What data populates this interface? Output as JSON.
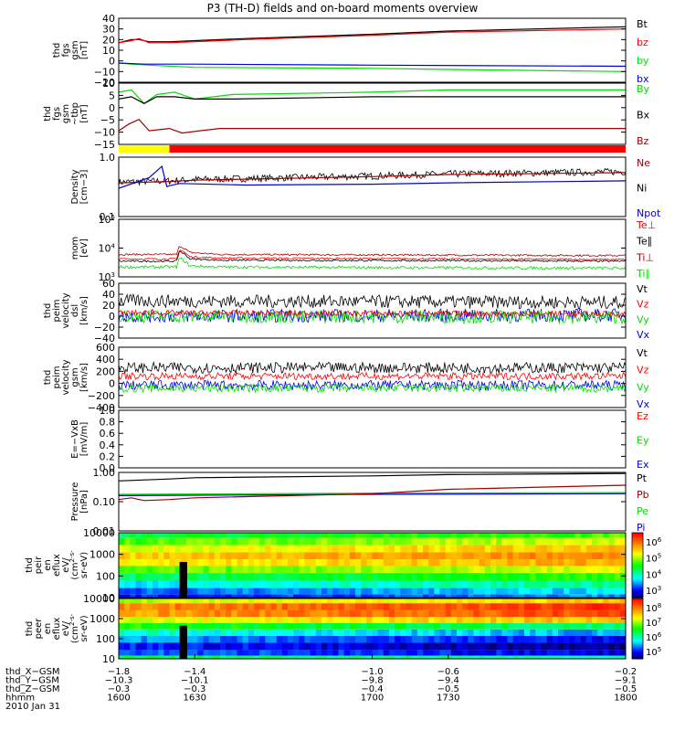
{
  "title": "P3 (TH-D) fields and on-board moments overview",
  "colors": {
    "black": "#000000",
    "red": "#ff0000",
    "darkred": "#a00000",
    "green": "#00dd00",
    "blue": "#0000dd",
    "yellow": "#ffff00",
    "barred": "#ff0000"
  },
  "status_bar": {
    "segments": [
      {
        "to": 1620,
        "color": "#ffff00"
      },
      {
        "to": 1800,
        "color": "#ff0000"
      }
    ]
  },
  "chart_data": [
    {
      "id": "fgs",
      "type": "line",
      "ylabel_lines": [
        "thd",
        "fgs",
        "gsm",
        "[nT]"
      ],
      "ylim": [
        -20,
        40
      ],
      "yticks": [
        "40",
        "30",
        "20",
        "10",
        "0",
        "−10",
        "−20"
      ],
      "legend": [
        {
          "name": "Bt",
          "color": "#000000"
        },
        {
          "name": "bz",
          "color": "#ff0000"
        },
        {
          "name": "by",
          "color": "#00dd00"
        },
        {
          "name": "bx",
          "color": "#0000dd"
        }
      ],
      "series": [
        {
          "name": "Bt",
          "color": "#000000",
          "x": [
            1600,
            1605,
            1608,
            1612,
            1620,
            1630,
            1650,
            1700,
            1730,
            1800
          ],
          "y": [
            17,
            20,
            20,
            18,
            18,
            19,
            21,
            25,
            28,
            32
          ]
        },
        {
          "name": "bz",
          "color": "#ff0000",
          "x": [
            1600,
            1605,
            1608,
            1612,
            1620,
            1630,
            1650,
            1700,
            1730,
            1800
          ],
          "y": [
            17,
            19,
            21,
            17,
            17,
            18,
            20,
            24,
            27,
            30
          ]
        },
        {
          "name": "by",
          "color": "#00dd00",
          "x": [
            1600,
            1605,
            1612,
            1630,
            1700,
            1730,
            1800
          ],
          "y": [
            -2,
            -3,
            -4,
            -6,
            -7,
            -8,
            -10
          ]
        },
        {
          "name": "bx",
          "color": "#0000dd",
          "x": [
            1600,
            1610,
            1630,
            1700,
            1800
          ],
          "y": [
            -2,
            -3,
            -3,
            -4,
            -5
          ]
        }
      ]
    },
    {
      "id": "fgs_tbp",
      "type": "line",
      "ylabel_lines": [
        "thd",
        "fgs",
        "gsm",
        "~tbp",
        "[nT]"
      ],
      "ylim": [
        -17,
        10
      ],
      "yticks": [
        "10",
        "5",
        "0",
        "−5",
        "−10",
        "−15"
      ],
      "legend": [
        {
          "name": "By",
          "color": "#00dd00"
        },
        {
          "name": "Bx",
          "color": "#000000"
        },
        {
          "name": "Bz",
          "color": "#a00000"
        }
      ],
      "series": [
        {
          "name": "By",
          "color": "#00dd00",
          "x": [
            1600,
            1605,
            1610,
            1615,
            1622,
            1630,
            1645,
            1700,
            1730,
            1800
          ],
          "y": [
            6,
            7,
            1,
            5,
            6,
            3,
            5,
            6,
            7,
            7
          ]
        },
        {
          "name": "Bx",
          "color": "#000000",
          "x": [
            1600,
            1605,
            1610,
            1615,
            1622,
            1630,
            1645,
            1700,
            1730,
            1800
          ],
          "y": [
            3,
            4,
            1,
            4,
            4,
            3,
            3,
            4,
            4,
            4
          ]
        },
        {
          "name": "Bz",
          "color": "#a00000",
          "x": [
            1600,
            1604,
            1608,
            1612,
            1620,
            1625,
            1632,
            1640,
            1700,
            1730,
            1800
          ],
          "y": [
            -11,
            -8,
            -6,
            -11,
            -10,
            -12,
            -11,
            -10,
            -10,
            -10,
            -10
          ]
        }
      ]
    },
    {
      "id": "density",
      "type": "line",
      "log": true,
      "ylabel_lines": [
        "Density",
        "[cm−3]"
      ],
      "ylim": [
        0.1,
        1.0
      ],
      "yticks": [
        "1.0",
        "0.1"
      ],
      "legend": [
        {
          "name": "Ne",
          "color": "#a00000"
        },
        {
          "name": "Ni",
          "color": "#000000"
        },
        {
          "name": "Npot",
          "color": "#0000dd"
        }
      ],
      "series": [
        {
          "name": "Ni",
          "color": "#000000",
          "noise": 0.06,
          "x": [
            1600,
            1620,
            1630,
            1700,
            1730,
            1800
          ],
          "y": [
            0.38,
            0.4,
            0.42,
            0.48,
            0.52,
            0.57
          ]
        },
        {
          "name": "Ne",
          "color": "#a00000",
          "x": [
            1600,
            1620,
            1630,
            1700,
            1730,
            1800
          ],
          "y": [
            0.37,
            0.39,
            0.41,
            0.47,
            0.51,
            0.55
          ]
        },
        {
          "name": "Npot",
          "color": "#0000dd",
          "x": [
            1600,
            1612,
            1617,
            1619,
            1620,
            1624,
            1650,
            1700,
            1730,
            1800
          ],
          "y": [
            0.3,
            0.45,
            0.7,
            0.32,
            0.33,
            0.36,
            0.34,
            0.35,
            0.37,
            0.4
          ]
        }
      ]
    },
    {
      "id": "temp",
      "type": "line",
      "log": true,
      "ylabel_lines": [
        "mom",
        "[eV]"
      ],
      "ylim": [
        1000,
        100000
      ],
      "yticks": [
        "10^5",
        "10^4",
        "10^3"
      ],
      "legend": [
        {
          "name": "Te⊥",
          "color": "#ff0000"
        },
        {
          "name": "Te∥",
          "color": "#000000"
        },
        {
          "name": "Ti⊥",
          "color": "#a00000"
        },
        {
          "name": "Ti∥",
          "color": "#00dd00"
        }
      ],
      "series": [
        {
          "name": "Ti⊥",
          "color": "#a00000",
          "noise": 0.03,
          "x": [
            1600,
            1623,
            1624,
            1628,
            1640,
            1700,
            1800
          ],
          "y": [
            6000,
            6000,
            12000,
            7000,
            6000,
            5800,
            5500
          ]
        },
        {
          "name": "Te⊥",
          "color": "#ff0000",
          "noise": 0.03,
          "x": [
            1600,
            1623,
            1624,
            1628,
            1640,
            1700,
            1800
          ],
          "y": [
            4200,
            4200,
            9000,
            5000,
            4500,
            4300,
            4000
          ]
        },
        {
          "name": "Te∥",
          "color": "#000000",
          "noise": 0.03,
          "x": [
            1600,
            1623,
            1624,
            1628,
            1640,
            1700,
            1800
          ],
          "y": [
            3500,
            3500,
            8000,
            4200,
            3800,
            3700,
            3500
          ]
        },
        {
          "name": "Ti∥",
          "color": "#00dd00",
          "noise": 0.05,
          "x": [
            1600,
            1623,
            1624,
            1628,
            1640,
            1700,
            1800
          ],
          "y": [
            2200,
            2200,
            4500,
            2400,
            2200,
            2100,
            2000
          ]
        }
      ]
    },
    {
      "id": "vel_dsl",
      "type": "line",
      "ylabel_lines": [
        "thd",
        "peim",
        "velocity",
        "dsl",
        "[km/s]"
      ],
      "ylim": [
        -40,
        60
      ],
      "yticks": [
        "60",
        "40",
        "20",
        "0",
        "−20",
        "−40"
      ],
      "legend": [
        {
          "name": "Vt",
          "color": "#000000"
        },
        {
          "name": "Vz",
          "color": "#ff0000"
        },
        {
          "name": "Vy",
          "color": "#00dd00"
        },
        {
          "name": "Vx",
          "color": "#0000dd"
        }
      ],
      "series": [
        {
          "name": "Vt",
          "color": "#000000",
          "noise": 12,
          "x": [
            1600,
            1800
          ],
          "y": [
            28,
            25
          ]
        },
        {
          "name": "Vx",
          "color": "#0000dd",
          "noise": 12,
          "x": [
            1600,
            1800
          ],
          "y": [
            0,
            2
          ]
        },
        {
          "name": "Vy",
          "color": "#00dd00",
          "noise": 12,
          "x": [
            1600,
            1800
          ],
          "y": [
            0,
            -2
          ]
        },
        {
          "name": "Vz",
          "color": "#ff0000",
          "noise": 5,
          "x": [
            1600,
            1800
          ],
          "y": [
            6,
            4
          ]
        }
      ]
    },
    {
      "id": "vel_gsm",
      "type": "line",
      "ylabel_lines": [
        "thd",
        "peim",
        "velocity",
        "gsm",
        "[km/s]"
      ],
      "ylim": [
        -400,
        600
      ],
      "yticks": [
        "600",
        "400",
        "200",
        "0",
        "−200",
        "−400"
      ],
      "legend": [
        {
          "name": "Vt",
          "color": "#000000"
        },
        {
          "name": "Vz",
          "color": "#ff0000"
        },
        {
          "name": "Vy",
          "color": "#00dd00"
        },
        {
          "name": "Vx",
          "color": "#0000dd"
        }
      ],
      "series": [
        {
          "name": "Vt",
          "color": "#000000",
          "noise": 90,
          "x": [
            1600,
            1800
          ],
          "y": [
            260,
            260
          ]
        },
        {
          "name": "Vx",
          "color": "#0000dd",
          "noise": 80,
          "x": [
            1600,
            1800
          ],
          "y": [
            -30,
            -30
          ]
        },
        {
          "name": "Vz",
          "color": "#ff0000",
          "noise": 60,
          "x": [
            1600,
            1800
          ],
          "y": [
            120,
            120
          ]
        },
        {
          "name": "Vy",
          "color": "#00dd00",
          "noise": 70,
          "x": [
            1600,
            1800
          ],
          "y": [
            -80,
            -80
          ]
        }
      ]
    },
    {
      "id": "efield",
      "type": "line",
      "ylabel_lines": [
        "E=−VxB",
        "[mV/m]"
      ],
      "ylim": [
        0,
        1.0
      ],
      "yticks": [
        "1.0",
        "0.8",
        "0.6",
        "0.4",
        "0.2",
        "0.0"
      ],
      "legend": [
        {
          "name": "Ez",
          "color": "#ff0000"
        },
        {
          "name": "Ey",
          "color": "#00dd00"
        },
        {
          "name": "Ex",
          "color": "#0000dd"
        }
      ],
      "series": []
    },
    {
      "id": "pressure",
      "type": "line",
      "log": true,
      "ylabel_lines": [
        "Pressure",
        "[nPa]"
      ],
      "ylim": [
        0.01,
        1.2
      ],
      "yticks": [
        "1.00",
        "0.10",
        "0.01"
      ],
      "legend": [
        {
          "name": "Pt",
          "color": "#000000"
        },
        {
          "name": "Pb",
          "color": "#a00000"
        },
        {
          "name": "Pe",
          "color": "#00dd00"
        },
        {
          "name": "Pi",
          "color": "#0000dd"
        }
      ],
      "series": [
        {
          "name": "Pt",
          "color": "#000000",
          "x": [
            1600,
            1620,
            1630,
            1700,
            1730,
            1800
          ],
          "y": [
            0.6,
            0.7,
            0.78,
            0.9,
            1.0,
            1.1
          ]
        },
        {
          "name": "Pe",
          "color": "#00dd00",
          "x": [
            1600,
            1700,
            1800
          ],
          "y": [
            0.2,
            0.22,
            0.23
          ]
        },
        {
          "name": "Pi",
          "color": "#0000dd",
          "x": [
            1600,
            1700,
            1800
          ],
          "y": [
            0.18,
            0.2,
            0.21
          ]
        },
        {
          "name": "Pb",
          "color": "#a00000",
          "x": [
            1600,
            1605,
            1610,
            1620,
            1630,
            1700,
            1730,
            1800
          ],
          "y": [
            0.13,
            0.15,
            0.12,
            0.13,
            0.15,
            0.21,
            0.3,
            0.42
          ]
        }
      ]
    },
    {
      "id": "peir",
      "type": "heatmap",
      "ylabel_lines": [
        "thd",
        "peir",
        "en",
        "eflux",
        "eV/",
        "(cm^2-s-",
        "sr-eV)"
      ],
      "ylim": [
        5,
        25000
      ],
      "yticks": [
        "10000",
        "1000",
        "100",
        "10"
      ],
      "colorbar": [
        "10^6",
        "10^5",
        "10^4",
        "10^3"
      ],
      "colorbar_log_range": [
        2.5,
        6.3
      ],
      "gap_x": [
        1624,
        1627
      ],
      "rows_log_flux": [
        {
          "energy": 20000,
          "level": 4.2
        },
        {
          "energy": 8000,
          "level": 4.6
        },
        {
          "energy": 3000,
          "level": 5.0
        },
        {
          "energy": 1200,
          "level": 5.3
        },
        {
          "energy": 500,
          "level": 5.1
        },
        {
          "energy": 200,
          "level": 4.6
        },
        {
          "energy": 80,
          "level": 4.1
        },
        {
          "energy": 30,
          "level": 3.6
        },
        {
          "energy": 10,
          "level": 3.2
        },
        {
          "energy": 6,
          "level": 3.0
        }
      ]
    },
    {
      "id": "peer",
      "type": "heatmap",
      "ylabel_lines": [
        "thd",
        "peer",
        "en",
        "eflux",
        "eV/",
        "(cm^2-s-",
        "sr-eV)"
      ],
      "ylim": [
        5,
        25000
      ],
      "yticks": [
        "10000",
        "1000",
        "100",
        "10"
      ],
      "colorbar": [
        "10^8",
        "10^7",
        "10^6",
        "10^5"
      ],
      "colorbar_log_range": [
        4.8,
        8.3
      ],
      "gap_x": [
        1624,
        1627
      ],
      "rows_log_flux": [
        {
          "energy": 20000,
          "level": 7.0
        },
        {
          "energy": 8000,
          "level": 7.7
        },
        {
          "energy": 3000,
          "level": 7.6
        },
        {
          "energy": 1200,
          "level": 7.1
        },
        {
          "energy": 500,
          "level": 6.6
        },
        {
          "energy": 200,
          "level": 6.0
        },
        {
          "energy": 80,
          "level": 5.6
        },
        {
          "energy": 30,
          "level": 5.3
        },
        {
          "energy": 10,
          "level": 5.5
        },
        {
          "energy": 6,
          "level": 6.4
        }
      ]
    }
  ],
  "xaxis": {
    "xlim": [
      1600,
      1800
    ],
    "ticks": [
      1600,
      1630,
      1700,
      1730,
      1800
    ],
    "rows": [
      {
        "label": "thd_X−GSM",
        "values": [
          "−1.8",
          "−1.4",
          "−1.0",
          "−0.6",
          "−0.2"
        ]
      },
      {
        "label": "thd_Y−GSM",
        "values": [
          "−10.3",
          "−10.1",
          "−9.8",
          "−9.4",
          "−9.1"
        ]
      },
      {
        "label": "thd_Z−GSM",
        "values": [
          "−0.3",
          "−0.3",
          "−0.4",
          "−0.5",
          "−0.5"
        ]
      },
      {
        "label": "hhmm",
        "values": [
          "1600",
          "1630",
          "1700",
          "1730",
          "1800"
        ]
      }
    ],
    "date": "2010 Jan 31"
  }
}
